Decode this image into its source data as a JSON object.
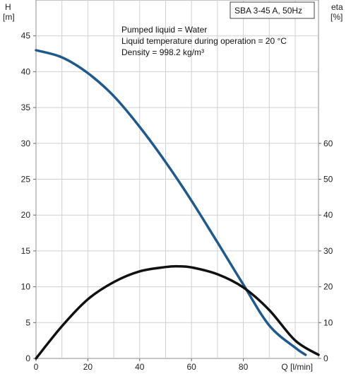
{
  "chart_data": {
    "type": "line",
    "title": "SBA 3-45 A, 50Hz",
    "annotations": [
      "Pumped liquid = Water",
      "Liquid temperature during operation = 20 °C",
      "Density = 998.2 kg/m³"
    ],
    "left_axis": {
      "label": "H",
      "unit": "[m]",
      "range": [
        0,
        50
      ],
      "ticks": [
        0,
        5,
        10,
        15,
        20,
        25,
        30,
        35,
        40,
        45
      ]
    },
    "right_axis": {
      "label": "eta",
      "unit": "[%]",
      "range": [
        0,
        100
      ],
      "ticks": [
        0,
        10,
        20,
        30,
        40,
        50,
        60
      ]
    },
    "x_axis": {
      "label": "Q [l/min]",
      "range": [
        0,
        109
      ],
      "ticks": [
        0,
        20,
        40,
        60,
        80
      ]
    },
    "grid": true,
    "series": [
      {
        "axis": "left",
        "color": "#1f5a8f",
        "points": [
          [
            0,
            43
          ],
          [
            10,
            42
          ],
          [
            20,
            39.8
          ],
          [
            30,
            36.6
          ],
          [
            40,
            32.3
          ],
          [
            50,
            27.4
          ],
          [
            60,
            22
          ],
          [
            70,
            16.2
          ],
          [
            80,
            10.3
          ],
          [
            90,
            4.6
          ],
          [
            100,
            1.5
          ],
          [
            104,
            0.5
          ]
        ]
      },
      {
        "axis": "right",
        "color": "#111111",
        "points": [
          [
            0,
            0
          ],
          [
            10,
            9
          ],
          [
            20,
            16.5
          ],
          [
            30,
            21.3
          ],
          [
            40,
            24.3
          ],
          [
            50,
            25.5
          ],
          [
            55,
            25.7
          ],
          [
            60,
            25.4
          ],
          [
            70,
            23.5
          ],
          [
            80,
            19.8
          ],
          [
            90,
            13.5
          ],
          [
            100,
            5
          ],
          [
            109,
            1
          ]
        ]
      }
    ]
  }
}
